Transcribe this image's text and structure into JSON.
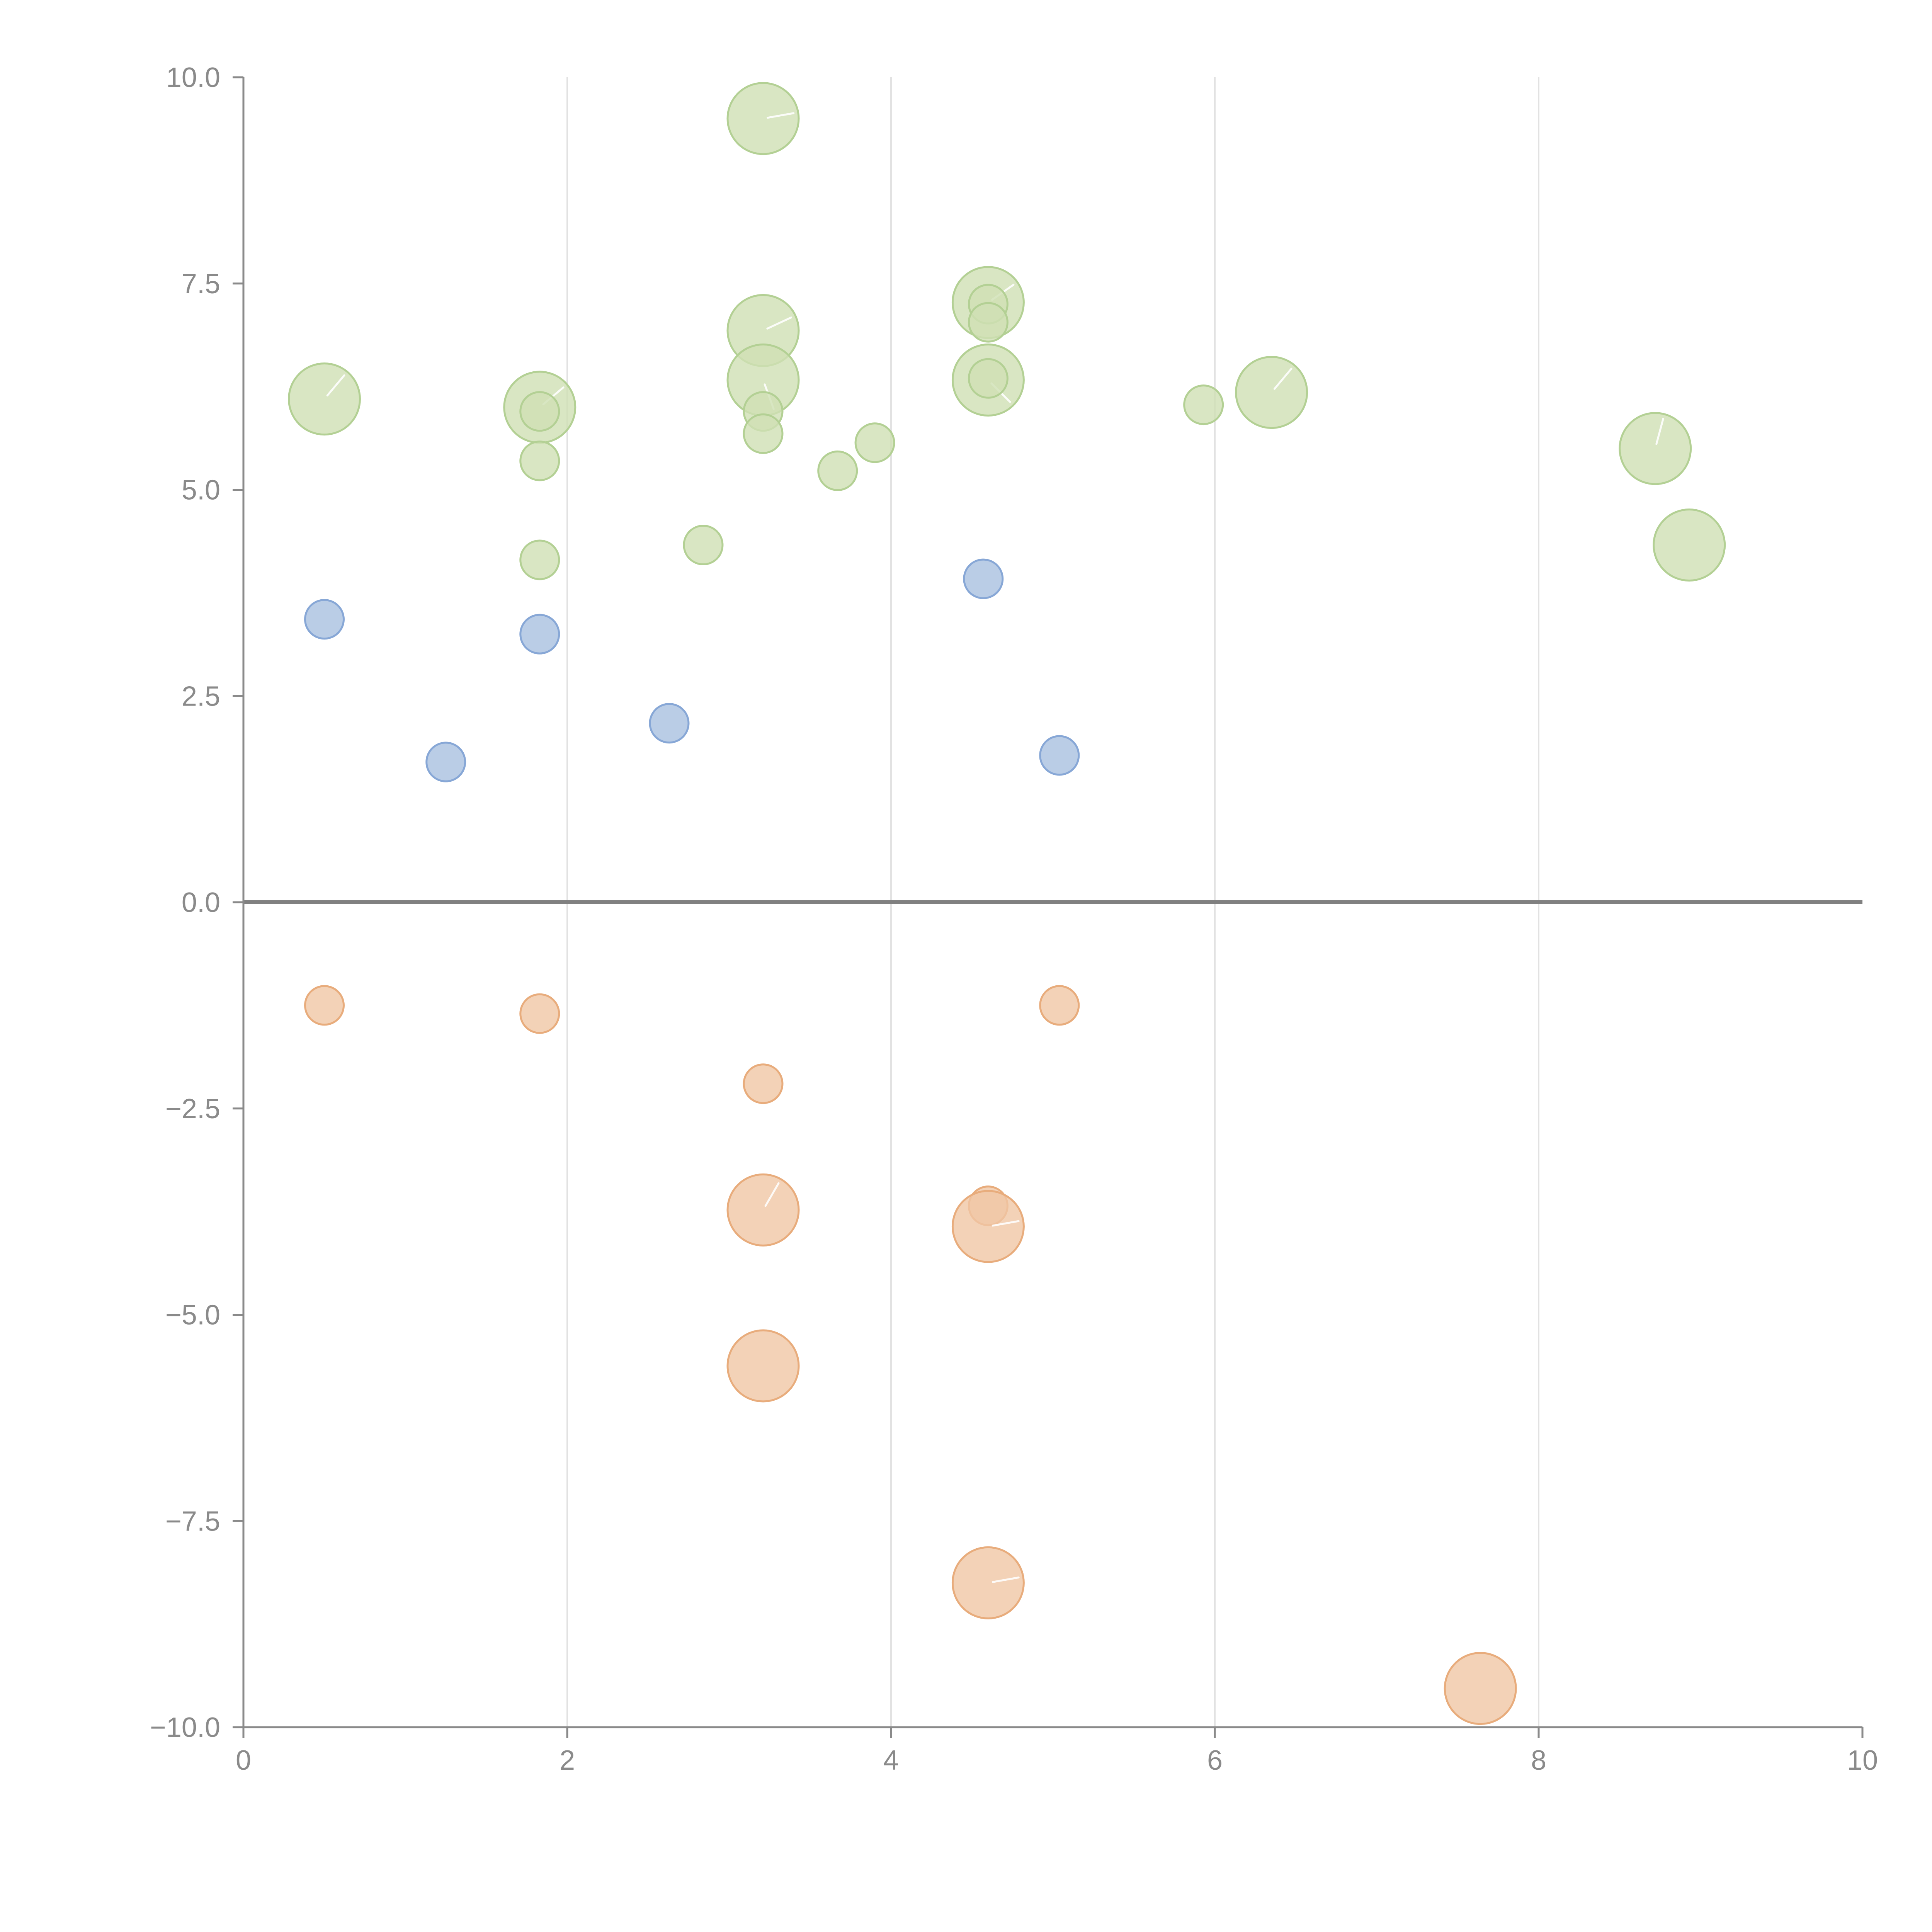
{
  "chart_data": {
    "type": "scatter",
    "title": "",
    "xlabel": "",
    "ylabel": "",
    "xlim": [
      0,
      10
    ],
    "ylim": [
      -10,
      10
    ],
    "x_ticks": [
      0,
      2,
      4,
      6,
      8,
      10
    ],
    "x_tick_labels": [
      "0",
      "2",
      "4",
      "6",
      "8",
      "10"
    ],
    "y_ticks": [
      10,
      7.5,
      5,
      2.5,
      0,
      -2.5,
      -5,
      -7.5,
      -10
    ],
    "y_tick_labels": [
      "10.0",
      "7.5",
      "5.0",
      "2.5",
      "0.0",
      "−2.5",
      "−5.0",
      "−7.5",
      "−10.0"
    ],
    "vertical_grid": true,
    "zero_line": true,
    "legend": "none",
    "colors": {
      "blue_fill": "#a9c0e0",
      "blue_stroke": "#87a7d6",
      "green_fill": "#cfe0b4",
      "green_stroke": "#b3d094",
      "orange_fill": "#f0c7a5",
      "orange_stroke": "#e8ac7c"
    },
    "series": [
      {
        "name": "blue",
        "points": [
          {
            "x": 0.5,
            "y": 3.43,
            "size": 1
          },
          {
            "x": 1.25,
            "y": 1.7,
            "size": 1
          },
          {
            "x": 1.83,
            "y": 3.25,
            "size": 1
          },
          {
            "x": 2.63,
            "y": 2.17,
            "size": 1
          },
          {
            "x": 4.57,
            "y": 3.92,
            "size": 1
          },
          {
            "x": 5.04,
            "y": 1.78,
            "size": 1
          }
        ]
      },
      {
        "name": "green",
        "points": [
          {
            "x": 0.5,
            "y": 6.1,
            "size": 2,
            "glint": 50
          },
          {
            "x": 1.83,
            "y": 6.0,
            "size": 2,
            "glint": 40
          },
          {
            "x": 1.83,
            "y": 5.95,
            "size": 1
          },
          {
            "x": 1.83,
            "y": 5.35,
            "size": 1
          },
          {
            "x": 1.83,
            "y": 4.15,
            "size": 1
          },
          {
            "x": 2.84,
            "y": 4.33,
            "size": 1
          },
          {
            "x": 3.21,
            "y": 9.5,
            "size": 2,
            "glint": 10
          },
          {
            "x": 3.21,
            "y": 6.93,
            "size": 2,
            "glint": 25
          },
          {
            "x": 3.21,
            "y": 6.33,
            "size": 2,
            "glint": -70
          },
          {
            "x": 3.21,
            "y": 5.95,
            "size": 1
          },
          {
            "x": 3.21,
            "y": 5.68,
            "size": 1
          },
          {
            "x": 3.67,
            "y": 5.23,
            "size": 1
          },
          {
            "x": 3.9,
            "y": 5.57,
            "size": 1
          },
          {
            "x": 4.6,
            "y": 7.27,
            "size": 2,
            "glint": 35
          },
          {
            "x": 4.6,
            "y": 7.25,
            "size": 1
          },
          {
            "x": 4.6,
            "y": 7.03,
            "size": 1
          },
          {
            "x": 4.6,
            "y": 6.33,
            "size": 2,
            "glint": -45
          },
          {
            "x": 4.6,
            "y": 6.35,
            "size": 1
          },
          {
            "x": 5.93,
            "y": 6.03,
            "size": 1
          },
          {
            "x": 6.35,
            "y": 6.18,
            "size": 2,
            "glint": 50
          },
          {
            "x": 8.72,
            "y": 5.5,
            "size": 2,
            "glint": 75
          },
          {
            "x": 8.93,
            "y": 4.33,
            "size": 2
          }
        ]
      },
      {
        "name": "orange",
        "points": [
          {
            "x": 0.5,
            "y": -1.25,
            "size": 1
          },
          {
            "x": 1.83,
            "y": -1.35,
            "size": 1
          },
          {
            "x": 3.21,
            "y": -2.2,
            "size": 1
          },
          {
            "x": 3.21,
            "y": -3.73,
            "size": 2,
            "glint": 60
          },
          {
            "x": 3.21,
            "y": -5.62,
            "size": 2
          },
          {
            "x": 4.6,
            "y": -3.68,
            "size": 1
          },
          {
            "x": 4.6,
            "y": -3.93,
            "size": 2,
            "glint": 10
          },
          {
            "x": 4.6,
            "y": -8.25,
            "size": 2,
            "glint": 10
          },
          {
            "x": 5.04,
            "y": -1.25,
            "size": 1
          },
          {
            "x": 7.64,
            "y": -9.53,
            "size": 2
          }
        ]
      }
    ]
  }
}
